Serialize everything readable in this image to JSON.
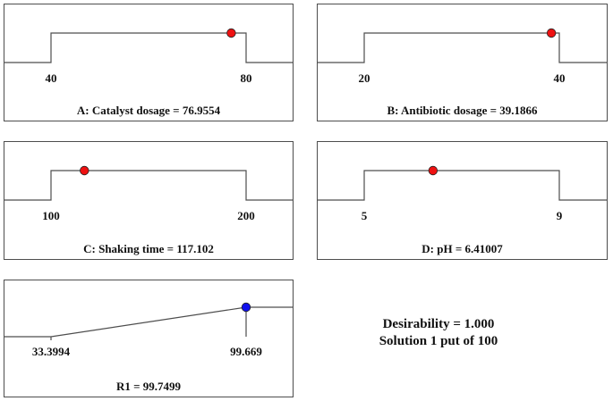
{
  "chart_data": [
    {
      "type": "line",
      "kind": "desirability-ramp",
      "title": "A: Catalyst dosage = 76.9554",
      "x_ticks": [
        "40",
        "80"
      ],
      "range": [
        40,
        80
      ],
      "value": 76.9554,
      "marker_color": "#ee1111"
    },
    {
      "type": "line",
      "kind": "desirability-ramp",
      "title": "B: Antibiotic dosage = 39.1866",
      "x_ticks": [
        "20",
        "40"
      ],
      "range": [
        20,
        40
      ],
      "value": 39.1866,
      "marker_color": "#ee1111"
    },
    {
      "type": "line",
      "kind": "desirability-ramp",
      "title": "C: Shaking time = 117.102",
      "x_ticks": [
        "100",
        "200"
      ],
      "range": [
        100,
        200
      ],
      "value": 117.102,
      "marker_color": "#ee1111"
    },
    {
      "type": "line",
      "kind": "desirability-ramp",
      "title": "D: pH = 6.41007",
      "x_ticks": [
        "5",
        "9"
      ],
      "range": [
        5,
        9
      ],
      "value": 6.41007,
      "marker_color": "#ee1111"
    },
    {
      "type": "line",
      "kind": "desirability-ramp",
      "shape": "maximize",
      "title": "R1 = 99.7499",
      "x_ticks": [
        "33.3994",
        "99.669"
      ],
      "range": [
        33.3994,
        99.669
      ],
      "value": 99.7499,
      "marker_color": "#1111ee"
    }
  ],
  "summary": {
    "desirability": "Desirability = 1.000",
    "solution": "Solution 1 put of 100"
  }
}
